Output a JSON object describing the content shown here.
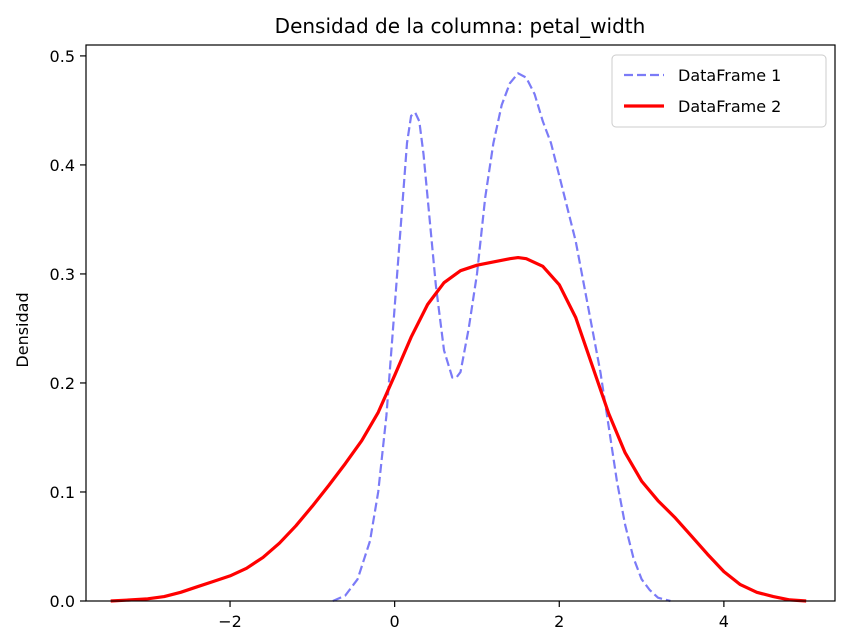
{
  "chart_data": {
    "type": "line",
    "title": "Densidad de la columna: petal_width",
    "xlabel": "",
    "ylabel": "Densidad",
    "xlim": [
      -3.75,
      5.35
    ],
    "ylim": [
      0,
      0.51
    ],
    "xticks": [
      -2,
      0,
      2,
      4
    ],
    "xtick_labels": [
      "−2",
      "0",
      "2",
      "4"
    ],
    "yticks": [
      0.0,
      0.1,
      0.2,
      0.3,
      0.4,
      0.5
    ],
    "ytick_labels": [
      "0.0",
      "0.1",
      "0.2",
      "0.3",
      "0.4",
      "0.5"
    ],
    "grid": false,
    "legend_position": "top-right",
    "series": [
      {
        "name": "DataFrame 1",
        "color": "#7b7bf7",
        "style": "dashed",
        "x": [
          -0.75,
          -0.6,
          -0.45,
          -0.3,
          -0.2,
          -0.1,
          0.0,
          0.1,
          0.15,
          0.2,
          0.25,
          0.3,
          0.35,
          0.4,
          0.5,
          0.6,
          0.7,
          0.75,
          0.8,
          0.9,
          1.0,
          1.1,
          1.2,
          1.3,
          1.4,
          1.5,
          1.6,
          1.7,
          1.8,
          1.9,
          2.0,
          2.2,
          2.4,
          2.5,
          2.6,
          2.7,
          2.8,
          2.9,
          3.0,
          3.1,
          3.2,
          3.35
        ],
        "y": [
          0.0,
          0.005,
          0.02,
          0.055,
          0.1,
          0.17,
          0.27,
          0.37,
          0.42,
          0.445,
          0.448,
          0.44,
          0.41,
          0.37,
          0.29,
          0.23,
          0.205,
          0.205,
          0.21,
          0.25,
          0.3,
          0.37,
          0.42,
          0.455,
          0.475,
          0.484,
          0.48,
          0.465,
          0.44,
          0.42,
          0.39,
          0.33,
          0.25,
          0.21,
          0.16,
          0.11,
          0.07,
          0.04,
          0.02,
          0.01,
          0.003,
          0.0
        ]
      },
      {
        "name": "DataFrame 2",
        "color": "#ff0000",
        "style": "solid",
        "x": [
          -3.45,
          -3.2,
          -3.0,
          -2.8,
          -2.6,
          -2.4,
          -2.2,
          -2.0,
          -1.8,
          -1.6,
          -1.4,
          -1.2,
          -1.0,
          -0.8,
          -0.6,
          -0.4,
          -0.2,
          0.0,
          0.2,
          0.4,
          0.6,
          0.8,
          1.0,
          1.2,
          1.4,
          1.5,
          1.6,
          1.8,
          2.0,
          2.2,
          2.4,
          2.6,
          2.8,
          3.0,
          3.2,
          3.4,
          3.6,
          3.8,
          4.0,
          4.2,
          4.4,
          4.6,
          4.8,
          5.0
        ],
        "y": [
          0.0,
          0.001,
          0.002,
          0.004,
          0.008,
          0.013,
          0.018,
          0.023,
          0.03,
          0.04,
          0.053,
          0.069,
          0.087,
          0.106,
          0.126,
          0.147,
          0.173,
          0.207,
          0.242,
          0.272,
          0.292,
          0.303,
          0.308,
          0.311,
          0.314,
          0.315,
          0.314,
          0.307,
          0.29,
          0.26,
          0.216,
          0.172,
          0.136,
          0.11,
          0.092,
          0.077,
          0.06,
          0.043,
          0.027,
          0.015,
          0.008,
          0.004,
          0.001,
          0.0
        ]
      }
    ]
  }
}
